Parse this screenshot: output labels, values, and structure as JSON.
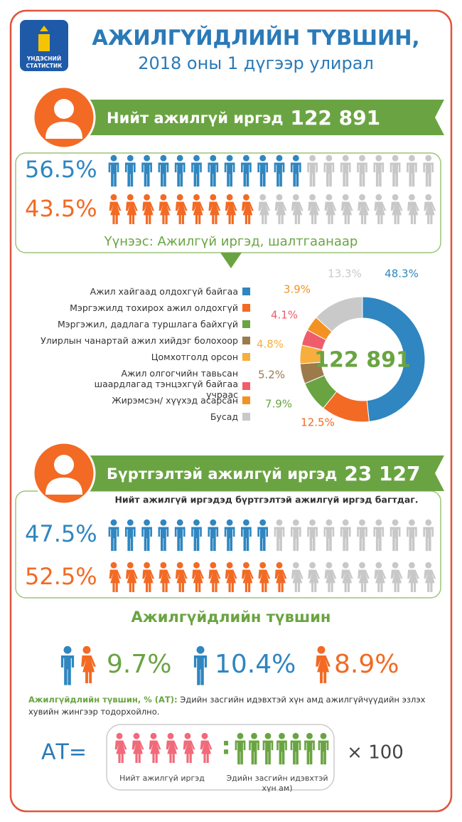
{
  "header": {
    "logo_text": [
      "ҮНДЭСНИЙ",
      "СТАТИСТИК"
    ],
    "title": [
      "АЖИЛГҮЙДЛИЙН ТҮВШИН,",
      "2018 оны 1 дүгээр улирал"
    ]
  },
  "unemployed": {
    "label": "Нийт ажилгүй иргэд",
    "total": "122 891",
    "male": {
      "value": 56.5,
      "label": "56.5%",
      "color": "#2f86c0"
    },
    "female": {
      "value": 43.5,
      "label": "43.5%",
      "color": "#f26a24"
    }
  },
  "chart_data": {
    "type": "donut",
    "title": "Үүнээс: Ажилгүй иргэд, шалтгаанаар",
    "center_label": "122 891",
    "categories": [
      "Ажил хайгаад олдохгүй байгаа",
      "Мэргэжилд тохирох ажил олдохгүй",
      "Мэргэжил, дадлага туршлага байхгүй",
      "Улирлын чанартай ажил хийдэг болохоор",
      "Цомхотголд орсон",
      "Ажил олгогчийн тавьсан шаардлагад тэнцэхгүй байгаа учраас",
      "Жирэмсэн/ хүүхэд асарсан",
      "Бусад"
    ],
    "values": [
      48.3,
      12.5,
      7.9,
      5.2,
      4.8,
      4.1,
      3.9,
      13.3
    ],
    "value_labels": [
      "48.3%",
      "12.5%",
      "7.9%",
      "5.2%",
      "4.8%",
      "4.1%",
      "3.9%",
      "13.3%"
    ],
    "colors": [
      "#2f86c0",
      "#f26a24",
      "#6aa442",
      "#9c7a4a",
      "#f6ae3c",
      "#ef5d6b",
      "#f39222",
      "#c9c9c9"
    ]
  },
  "registered": {
    "label": "Бүртгэлтэй ажилгүй иргэд",
    "total": "23 127",
    "note": "Нийт ажилгүй иргэдэд бүртгэлтэй ажилгүй иргэд багтдаг.",
    "male": {
      "value": 47.5,
      "label": "47.5%",
      "color": "#2f86c0"
    },
    "female": {
      "value": 52.5,
      "label": "52.5%",
      "color": "#f26a24"
    }
  },
  "rate": {
    "title": "Ажилгүйдлийн түвшин",
    "total": {
      "value": 9.7,
      "label": "9.7%",
      "color": "#6aa442"
    },
    "male": {
      "value": 10.4,
      "label": "10.4%",
      "color": "#2f86c0"
    },
    "female": {
      "value": 8.9,
      "label": "8.9%",
      "color": "#f26a24"
    },
    "definition_term": "Ажилгүйдлийн түвшин, % (АТ):",
    "definition": "Эдийн засгийн идэвхтэй хүн амд ажилгүйчүүдийн эзлэх хувийн жингээр тодорхойлно.",
    "formula": {
      "lhs": "АТ=",
      "separator": ":",
      "numerator": "Нийт ажилгүй иргэд",
      "denominator": [
        "Эдийн засгийн идэвхтэй",
        "хүн ам)"
      ],
      "multiplier": "× 100"
    }
  }
}
